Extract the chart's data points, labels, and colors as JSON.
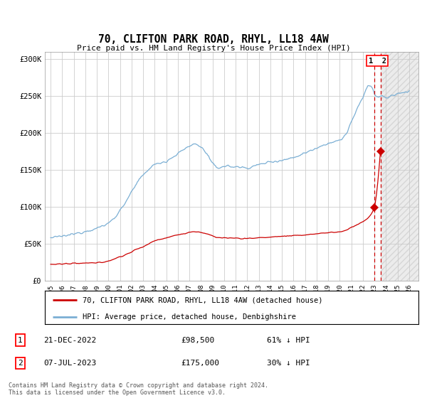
{
  "title": "70, CLIFTON PARK ROAD, RHYL, LL18 4AW",
  "subtitle": "Price paid vs. HM Land Registry's House Price Index (HPI)",
  "background_color": "#ffffff",
  "plot_bg_color": "#ffffff",
  "grid_color": "#cccccc",
  "hpi_color": "#7bafd4",
  "price_color": "#cc0000",
  "sale1_date_num": 2022.97,
  "sale1_price": 98500,
  "sale2_date_num": 2023.51,
  "sale2_price": 175000,
  "ylim": [
    0,
    310000
  ],
  "xlim_start": 1994.5,
  "xlim_end": 2026.8,
  "footer": "Contains HM Land Registry data © Crown copyright and database right 2024.\nThis data is licensed under the Open Government Licence v3.0.",
  "legend_label_red": "70, CLIFTON PARK ROAD, RHYL, LL18 4AW (detached house)",
  "legend_label_blue": "HPI: Average price, detached house, Denbighshire",
  "shade_start": 2023.51,
  "yticks": [
    0,
    50000,
    100000,
    150000,
    200000,
    250000,
    300000
  ],
  "ytick_labels": [
    "£0",
    "£50K",
    "£100K",
    "£150K",
    "£200K",
    "£250K",
    "£300K"
  ],
  "xtick_years": [
    1995,
    1996,
    1997,
    1998,
    1999,
    2000,
    2001,
    2002,
    2003,
    2004,
    2005,
    2006,
    2007,
    2008,
    2009,
    2010,
    2011,
    2012,
    2013,
    2014,
    2015,
    2016,
    2017,
    2018,
    2019,
    2020,
    2021,
    2022,
    2023,
    2024,
    2025,
    2026
  ]
}
